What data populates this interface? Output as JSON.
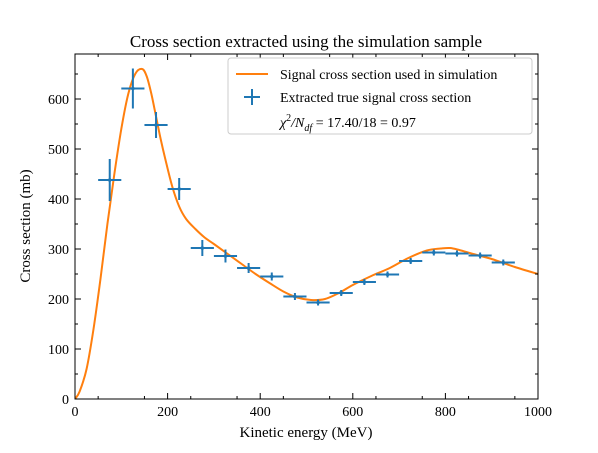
{
  "chart_data": {
    "type": "line",
    "title": "Cross section extracted using the simulation sample",
    "xlabel": "Kinetic energy (MeV)",
    "ylabel": "Cross section (mb)",
    "xlim": [
      0,
      1000
    ],
    "ylim": [
      0,
      690
    ],
    "xticks": [
      0,
      200,
      400,
      600,
      800,
      1000
    ],
    "xtick_labels": [
      "0",
      "200",
      "400",
      "600",
      "800",
      "1000"
    ],
    "yticks": [
      0,
      100,
      200,
      300,
      400,
      500,
      600
    ],
    "ytick_labels": [
      "0",
      "100",
      "200",
      "300",
      "400",
      "500",
      "600"
    ],
    "grid": false,
    "legend_position": "top-right",
    "series": [
      {
        "name": "Signal cross section used in simulation",
        "kind": "line",
        "color": "#ff7f0e",
        "x": [
          0,
          10,
          25,
          40,
          55,
          70,
          85,
          100,
          115,
          130,
          145,
          155,
          165,
          175,
          185,
          195,
          210,
          225,
          240,
          260,
          280,
          300,
          330,
          360,
          390,
          420,
          450,
          480,
          510,
          540,
          570,
          600,
          640,
          680,
          720,
          760,
          790,
          810,
          830,
          860,
          900,
          950,
          1000
        ],
        "y": [
          0,
          15,
          60,
          140,
          240,
          350,
          450,
          540,
          610,
          650,
          660,
          645,
          610,
          565,
          520,
          480,
          425,
          385,
          360,
          340,
          323,
          310,
          290,
          270,
          250,
          232,
          215,
          203,
          198,
          200,
          212,
          228,
          246,
          262,
          282,
          297,
          301,
          302,
          298,
          290,
          280,
          264,
          250
        ]
      },
      {
        "name": "Extracted true signal cross section",
        "kind": "errorbar",
        "color": "#1f77b4",
        "x": [
          75,
          125,
          175,
          225,
          275,
          325,
          375,
          425,
          475,
          525,
          575,
          625,
          675,
          725,
          775,
          825,
          875,
          925
        ],
        "y": [
          438,
          621,
          548,
          420,
          302,
          286,
          262,
          245,
          205,
          193,
          212,
          234,
          249,
          276,
          293,
          291,
          287,
          273
        ],
        "xerr": [
          25,
          25,
          25,
          25,
          25,
          25,
          25,
          25,
          25,
          25,
          25,
          25,
          25,
          25,
          25,
          25,
          25,
          25
        ],
        "yerr": [
          42,
          40,
          26,
          22,
          16,
          13,
          10,
          8,
          7,
          6,
          6,
          6,
          6,
          6,
          6,
          6,
          6,
          6
        ]
      }
    ],
    "annotation": {
      "chi_symbol": "χ",
      "sup": "2",
      "slash_n": "/N",
      "sub": "df",
      "value": " = 17.40/18 = 0.97"
    }
  }
}
